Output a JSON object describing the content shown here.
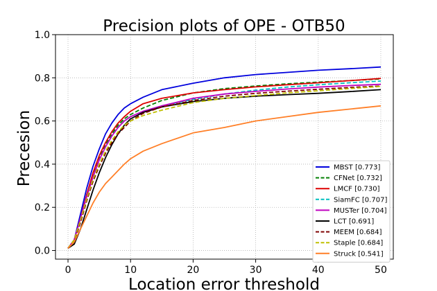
{
  "chart_data": {
    "type": "line",
    "title": "Precision plots of OPE - OTB50",
    "xlabel": "Location error threshold",
    "ylabel": "Precesion",
    "xlim": [
      -2,
      52
    ],
    "ylim": [
      -0.04,
      1.0
    ],
    "xticks": [
      0,
      10,
      20,
      30,
      40,
      50
    ],
    "yticks": [
      0.0,
      0.2,
      0.4,
      0.6,
      0.8,
      1.0
    ],
    "grid": true,
    "legend_position": "lower-right",
    "x": [
      0,
      1,
      2,
      3,
      4,
      5,
      6,
      7,
      8,
      9,
      10,
      12,
      15,
      20,
      25,
      30,
      35,
      40,
      45,
      50
    ],
    "series": [
      {
        "name": "MBST",
        "score": "[0.773]",
        "color": "#0000dd",
        "dash": "solid",
        "values": [
          0.01,
          0.05,
          0.17,
          0.29,
          0.39,
          0.47,
          0.54,
          0.59,
          0.63,
          0.66,
          0.68,
          0.71,
          0.745,
          0.775,
          0.8,
          0.815,
          0.825,
          0.835,
          0.842,
          0.85
        ]
      },
      {
        "name": "CFNet",
        "score": "[0.732]",
        "color": "#007f00",
        "dash": "dashed",
        "values": [
          0.01,
          0.05,
          0.15,
          0.26,
          0.35,
          0.43,
          0.49,
          0.54,
          0.58,
          0.61,
          0.63,
          0.66,
          0.695,
          0.73,
          0.75,
          0.762,
          0.772,
          0.78,
          0.787,
          0.795
        ]
      },
      {
        "name": "LMCF",
        "score": "[0.730]",
        "color": "#dd0000",
        "dash": "solid",
        "values": [
          0.01,
          0.05,
          0.15,
          0.26,
          0.36,
          0.44,
          0.5,
          0.55,
          0.59,
          0.62,
          0.645,
          0.68,
          0.705,
          0.73,
          0.745,
          0.758,
          0.768,
          0.777,
          0.787,
          0.797
        ]
      },
      {
        "name": "SiamFC",
        "score": "[0.707]",
        "color": "#00bfbf",
        "dash": "dashed",
        "values": [
          0.01,
          0.05,
          0.14,
          0.25,
          0.34,
          0.42,
          0.48,
          0.53,
          0.57,
          0.6,
          0.62,
          0.645,
          0.67,
          0.7,
          0.725,
          0.743,
          0.757,
          0.768,
          0.777,
          0.785
        ]
      },
      {
        "name": "MUSTer",
        "score": "[0.704]",
        "color": "#bf00bf",
        "dash": "solid",
        "values": [
          0.01,
          0.05,
          0.15,
          0.25,
          0.34,
          0.42,
          0.48,
          0.53,
          0.57,
          0.6,
          0.62,
          0.645,
          0.67,
          0.705,
          0.725,
          0.737,
          0.748,
          0.757,
          0.764,
          0.77
        ]
      },
      {
        "name": "LCT",
        "score": "[0.691]",
        "color": "#000000",
        "dash": "solid",
        "values": [
          0.01,
          0.03,
          0.1,
          0.19,
          0.28,
          0.36,
          0.43,
          0.49,
          0.54,
          0.58,
          0.61,
          0.64,
          0.665,
          0.69,
          0.705,
          0.715,
          0.722,
          0.728,
          0.736,
          0.745
        ]
      },
      {
        "name": "MEEM",
        "score": "[0.684]",
        "color": "#7f0000",
        "dash": "dashed",
        "values": [
          0.01,
          0.04,
          0.13,
          0.23,
          0.32,
          0.39,
          0.45,
          0.5,
          0.54,
          0.57,
          0.6,
          0.635,
          0.665,
          0.695,
          0.715,
          0.728,
          0.738,
          0.747,
          0.755,
          0.762
        ]
      },
      {
        "name": "Staple",
        "score": "[0.684]",
        "color": "#bfbf00",
        "dash": "dashed",
        "values": [
          0.01,
          0.05,
          0.14,
          0.24,
          0.33,
          0.4,
          0.46,
          0.51,
          0.55,
          0.58,
          0.6,
          0.625,
          0.65,
          0.685,
          0.705,
          0.718,
          0.73,
          0.74,
          0.75,
          0.76
        ]
      },
      {
        "name": "Struck",
        "score": "[0.541]",
        "color": "#ff7f27",
        "dash": "solid",
        "values": [
          0.01,
          0.04,
          0.1,
          0.16,
          0.22,
          0.27,
          0.31,
          0.34,
          0.37,
          0.4,
          0.425,
          0.46,
          0.495,
          0.545,
          0.57,
          0.6,
          0.62,
          0.64,
          0.655,
          0.67
        ]
      }
    ]
  }
}
